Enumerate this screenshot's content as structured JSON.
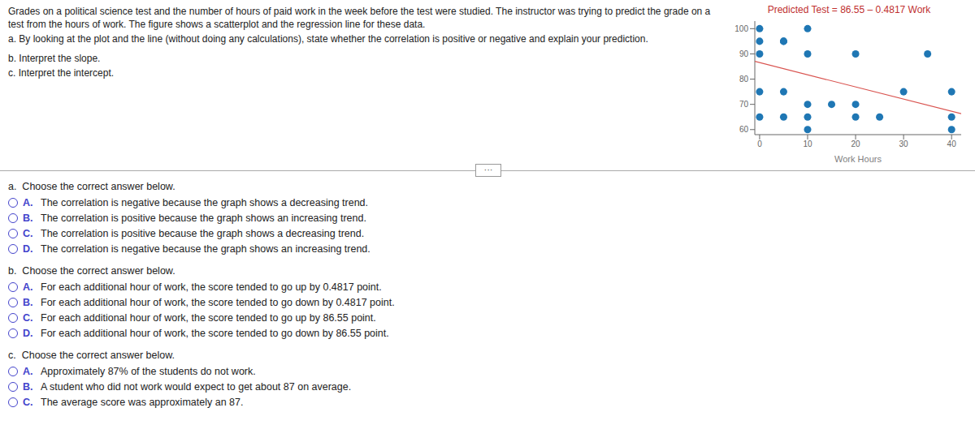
{
  "chart_data": {
    "type": "scatter",
    "title": "Predicted Test = 86.55 – 0.4817 Work",
    "x_label": "Work Hours",
    "xlim": [
      -1,
      42
    ],
    "ylim": [
      58,
      103
    ],
    "xticks": [
      0,
      10,
      20,
      30,
      40
    ],
    "yticks": [
      60,
      70,
      80,
      90,
      100
    ],
    "grid": false,
    "series": [
      {
        "type": "scatter",
        "color": "#1f77b4",
        "x": [
          0,
          0,
          0,
          0,
          0,
          5,
          5,
          5,
          5,
          10,
          10,
          10,
          10,
          10,
          15,
          20,
          20,
          20,
          25,
          30,
          35,
          40,
          40,
          40
        ],
        "values": [
          100,
          95,
          90,
          75,
          65,
          95,
          95,
          75,
          65,
          100,
          90,
          70,
          65,
          60,
          70,
          90,
          70,
          65,
          65,
          75,
          90,
          75,
          65,
          60
        ]
      },
      {
        "type": "line",
        "color": "#d9534f",
        "x": [
          -1,
          42
        ],
        "values": [
          87.0317,
          66.3186
        ]
      }
    ],
    "annotations": [
      "Grades on a political science test and the number of hours of paid work in the week before the test were studied. The instructor was trying to predict the grade on a test from the hours of work. The",
      "figure shows a scatterplot and the regression line for these data.",
      "a. By looking at the plot and the line (without doing any calculations), state whether the correlation is positive or negative and explain your prediction.",
      "b. Interpret the slope.",
      "c. Interpret the intercept.",
      "···",
      "a.  Choose the correct answer below.",
      "A.",
      "The correlation is negative because the graph shows a decreasing trend.",
      "B.",
      "The correlation is positive because the graph shows an increasing trend.",
      "C.",
      "The correlation is positive because the graph shows a decreasing trend.",
      "D.",
      "The correlation is negative because the graph shows an increasing trend.",
      "b.  Choose the correct answer below.",
      "A.",
      "For each additional hour of work, the score tended to go up by 0.4817 point.",
      "B.",
      "For each additional hour of work, the score tended to go down by 0.4817 point.",
      "C.",
      "For each additional hour of work, the score tended to go up by 86.55 point.",
      "D.",
      "For each additional hour of work, the score tended to go down by 86.55 point.",
      "c.  Choose the correct answer below.",
      "A.",
      "Approximately 87% of the students do not work.",
      "B.",
      "A student who did not work would expect to get about 87 on average.",
      "C.",
      "The average score was approximately an 87."
    ]
  }
}
